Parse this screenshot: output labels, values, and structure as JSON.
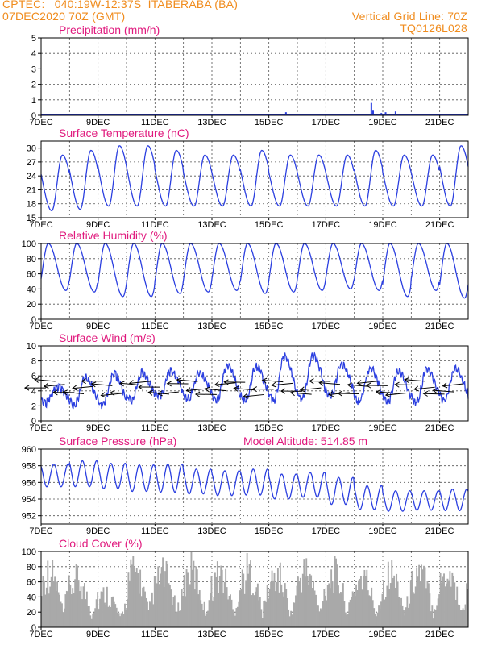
{
  "header": {
    "line1_left": "CPTEC:   040:19W-12:37S  ITABERABA (BA)",
    "line2_left": "07DEC2020 70Z (GMT)",
    "line1_right": "Vertical Grid Line: 70Z",
    "line2_right": "TQ0126L028"
  },
  "colors": {
    "header": "#f08c1e",
    "title": "#e0197d",
    "series": "#2b3fe0",
    "cloud": "#a9a9a9",
    "wind_arrow": "#000000"
  },
  "chart_data": [
    {
      "id": "precip",
      "type": "bar",
      "title": "Precipitation (mm/h)",
      "ylim": [
        0,
        5
      ],
      "yticks": [
        0,
        1,
        2,
        3,
        4,
        5
      ],
      "x_tick_labels": [
        "7DEC",
        "9DEC",
        "11DEC",
        "13DEC",
        "15DEC",
        "17DEC",
        "19DEC",
        "21DEC"
      ],
      "bars": [
        {
          "day": 0.08,
          "value": 0.08
        },
        {
          "day": 0.2,
          "value": 0.06
        },
        {
          "day": 8.6,
          "value": 0.2
        },
        {
          "day": 11.6,
          "value": 0.8
        },
        {
          "day": 11.66,
          "value": 0.3
        },
        {
          "day": 11.95,
          "value": 0.15
        },
        {
          "day": 12.1,
          "value": 0.2
        },
        {
          "day": 12.45,
          "value": 0.25
        }
      ]
    },
    {
      "id": "temp",
      "type": "line",
      "title": "Surface Temperature (nC)",
      "ylim": [
        15,
        31.5
      ],
      "yticks": [
        15,
        18,
        21,
        24,
        27,
        30
      ],
      "x_tick_labels": [
        "7DEC",
        "9DEC",
        "11DEC",
        "13DEC",
        "15DEC",
        "17DEC",
        "19DEC",
        "21DEC"
      ],
      "daily_min": [
        16.5,
        16.8,
        17.5,
        17.5,
        17.5,
        17.5,
        17.5,
        17.5,
        17.5,
        17.5,
        17.5,
        17.5,
        17.5,
        17.5,
        17.5
      ],
      "daily_max": [
        28.5,
        29.5,
        30.5,
        30.5,
        29.5,
        28.5,
        28.5,
        29.5,
        28.5,
        28.5,
        28.5,
        29.5,
        28.5,
        28.5,
        30.5
      ]
    },
    {
      "id": "rh",
      "type": "line",
      "title": "Relative Humidity (%)",
      "ylim": [
        0,
        100
      ],
      "yticks": [
        0,
        20,
        40,
        60,
        80,
        100
      ],
      "x_tick_labels": [
        "7DEC",
        "9DEC",
        "11DEC",
        "13DEC",
        "15DEC",
        "17DEC",
        "19DEC",
        "21DEC"
      ],
      "daily_max": [
        100,
        100,
        100,
        100,
        100,
        100,
        100,
        100,
        100,
        100,
        100,
        100,
        100,
        100,
        100
      ],
      "daily_min": [
        38,
        36,
        30,
        30,
        34,
        36,
        38,
        34,
        36,
        38,
        40,
        38,
        30,
        38,
        28
      ]
    },
    {
      "id": "wind",
      "type": "line",
      "title": "Surface Wind (m/s)",
      "ylim": [
        0,
        10
      ],
      "yticks": [
        0,
        2,
        4,
        6,
        8,
        10
      ],
      "x_tick_labels": [
        "7DEC",
        "9DEC",
        "11DEC",
        "13DEC",
        "15DEC",
        "17DEC",
        "19DEC",
        "21DEC"
      ],
      "daily_max": [
        4.5,
        5.8,
        6.2,
        6.4,
        6.6,
        6.5,
        7.3,
        7.2,
        8.6,
        8.8,
        7.6,
        7.0,
        6.6,
        6.8,
        7.0
      ],
      "daily_min": [
        2.4,
        2.1,
        2.0,
        2.8,
        3.2,
        3.0,
        2.8,
        2.7,
        2.6,
        3.0,
        3.2,
        2.6,
        2.4,
        2.5,
        2.7
      ],
      "arrows_per_day": 3
    },
    {
      "id": "pressure",
      "type": "line",
      "title": "Surface Pressure (hPa)",
      "subtitle": "Model Altitude: 514.85 m",
      "ylim": [
        951,
        960
      ],
      "yticks": [
        952,
        954,
        956,
        958,
        960
      ],
      "x_tick_labels": [
        "7DEC",
        "9DEC",
        "11DEC",
        "13DEC",
        "15DEC",
        "17DEC",
        "19DEC",
        "21DEC"
      ],
      "daily_max": [
        958.2,
        958.6,
        958.3,
        958.1,
        958.2,
        957.6,
        957.4,
        957.6,
        957.0,
        957.2,
        956.6,
        955.6,
        955.0,
        955.0,
        955.2
      ],
      "daily_min": [
        954.0,
        953.8,
        953.6,
        953.2,
        953.0,
        953.0,
        952.8,
        952.8,
        952.4,
        952.6,
        951.6,
        951.2,
        951.2,
        951.4,
        951.2
      ]
    },
    {
      "id": "cloud",
      "type": "bar",
      "title": "Cloud Cover (%)",
      "ylim": [
        0,
        100
      ],
      "yticks": [
        0,
        20,
        40,
        60,
        80,
        100
      ],
      "x_tick_labels": [
        "7DEC",
        "9DEC",
        "11DEC",
        "13DEC",
        "15DEC",
        "17DEC",
        "19DEC",
        "21DEC"
      ],
      "daily_peak": [
        98,
        85,
        60,
        100,
        95,
        100,
        95,
        100,
        92,
        100,
        95,
        90,
        95,
        100,
        100
      ]
    }
  ]
}
